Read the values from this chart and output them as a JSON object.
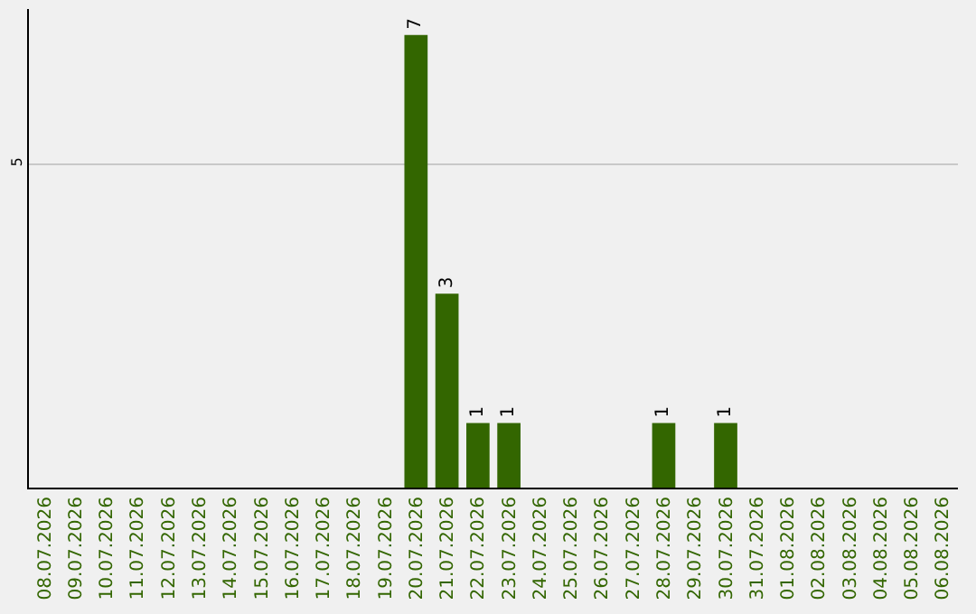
{
  "chart_data": {
    "type": "bar",
    "categories": [
      "08.07.2026",
      "09.07.2026",
      "10.07.2026",
      "11.07.2026",
      "12.07.2026",
      "13.07.2026",
      "14.07.2026",
      "15.07.2026",
      "16.07.2026",
      "17.07.2026",
      "18.07.2026",
      "19.07.2026",
      "20.07.2026",
      "21.07.2026",
      "22.07.2026",
      "23.07.2026",
      "24.07.2026",
      "25.07.2026",
      "26.07.2026",
      "27.07.2026",
      "28.07.2026",
      "29.07.2026",
      "30.07.2026",
      "31.07.2026",
      "01.08.2026",
      "02.08.2026",
      "03.08.2026",
      "04.08.2026",
      "05.08.2026",
      "06.08.2026"
    ],
    "values": [
      null,
      null,
      null,
      null,
      null,
      null,
      null,
      null,
      null,
      null,
      null,
      null,
      7,
      3,
      1,
      1,
      null,
      null,
      null,
      null,
      1,
      null,
      1,
      null,
      null,
      null,
      null,
      null,
      null,
      null
    ],
    "color": "#336600",
    "ylim": [
      0,
      7.4
    ],
    "yticks": [
      5
    ],
    "grid": "y",
    "legend": false,
    "data_labels": true
  }
}
